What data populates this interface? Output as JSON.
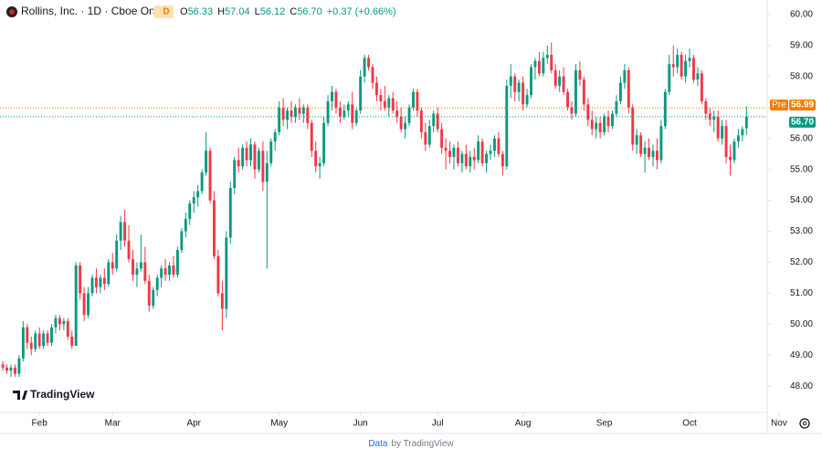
{
  "chart_data": {
    "type": "candlestick",
    "header": {
      "symbol": "Rollins, Inc. · 1D · Cboe One",
      "badge": "D",
      "fields": [
        {
          "key": "O",
          "value": "56.33"
        },
        {
          "key": "H",
          "value": "57.04"
        },
        {
          "key": "L",
          "value": "56.12"
        },
        {
          "key": "C",
          "value": "56.70"
        }
      ],
      "change": "+0.37 (+0.66%)"
    },
    "up_color": "#089981",
    "down_color": "#f23645",
    "candles": [
      [
        48.7,
        48.8,
        48.5,
        48.6
      ],
      [
        48.6,
        48.7,
        48.4,
        48.5
      ],
      [
        48.5,
        48.7,
        48.3,
        48.6
      ],
      [
        48.6,
        48.7,
        48.3,
        48.4
      ],
      [
        48.4,
        49.0,
        48.3,
        48.9
      ],
      [
        48.9,
        50.1,
        48.8,
        49.9
      ],
      [
        49.9,
        50.0,
        49.2,
        49.4
      ],
      [
        49.4,
        49.6,
        49.0,
        49.2
      ],
      [
        49.2,
        49.8,
        49.1,
        49.7
      ],
      [
        49.7,
        49.9,
        49.2,
        49.3
      ],
      [
        49.3,
        49.8,
        49.2,
        49.7
      ],
      [
        49.7,
        49.8,
        49.3,
        49.4
      ],
      [
        49.4,
        50.0,
        49.3,
        49.9
      ],
      [
        49.9,
        50.3,
        49.7,
        50.2
      ],
      [
        50.2,
        50.3,
        49.8,
        50.0
      ],
      [
        50.0,
        50.2,
        49.8,
        50.1
      ],
      [
        50.1,
        50.2,
        49.5,
        49.6
      ],
      [
        49.6,
        49.8,
        49.2,
        49.3
      ],
      [
        49.3,
        52.0,
        49.3,
        51.9
      ],
      [
        51.9,
        52.0,
        50.8,
        51.0
      ],
      [
        51.0,
        51.2,
        50.1,
        50.3
      ],
      [
        50.3,
        51.2,
        50.2,
        51.0
      ],
      [
        51.0,
        51.6,
        50.9,
        51.5
      ],
      [
        51.5,
        51.8,
        51.0,
        51.2
      ],
      [
        51.2,
        51.6,
        51.0,
        51.5
      ],
      [
        51.5,
        51.8,
        51.1,
        51.3
      ],
      [
        51.3,
        52.1,
        51.2,
        52.0
      ],
      [
        52.0,
        52.3,
        51.6,
        51.8
      ],
      [
        51.8,
        52.9,
        51.7,
        52.7
      ],
      [
        52.7,
        53.5,
        52.4,
        53.3
      ],
      [
        53.3,
        53.7,
        52.5,
        52.7
      ],
      [
        52.7,
        53.2,
        52.0,
        52.1
      ],
      [
        52.1,
        52.4,
        51.4,
        51.6
      ],
      [
        51.6,
        52.0,
        51.2,
        51.8
      ],
      [
        51.8,
        52.9,
        51.7,
        52.0
      ],
      [
        52.0,
        52.5,
        51.3,
        51.4
      ],
      [
        51.4,
        51.6,
        50.4,
        50.6
      ],
      [
        50.6,
        51.2,
        50.5,
        51.1
      ],
      [
        51.1,
        51.6,
        50.9,
        51.5
      ],
      [
        51.5,
        51.9,
        51.2,
        51.8
      ],
      [
        51.8,
        52.1,
        51.4,
        51.6
      ],
      [
        51.6,
        52.0,
        51.4,
        51.9
      ],
      [
        51.9,
        52.2,
        51.5,
        51.6
      ],
      [
        51.6,
        52.5,
        51.5,
        52.4
      ],
      [
        52.4,
        53.1,
        52.3,
        53.0
      ],
      [
        53.0,
        53.6,
        52.8,
        53.4
      ],
      [
        53.4,
        54.0,
        53.2,
        53.9
      ],
      [
        53.9,
        54.3,
        53.6,
        54.1
      ],
      [
        54.1,
        54.5,
        53.8,
        54.3
      ],
      [
        54.3,
        55.0,
        54.2,
        54.9
      ],
      [
        54.9,
        56.2,
        54.8,
        55.6
      ],
      [
        55.6,
        55.7,
        53.9,
        54.0
      ],
      [
        54.0,
        54.3,
        52.1,
        52.2
      ],
      [
        52.2,
        52.4,
        50.9,
        51.0
      ],
      [
        51.0,
        51.4,
        49.8,
        50.5
      ],
      [
        50.5,
        53.0,
        50.2,
        52.8
      ],
      [
        52.8,
        54.6,
        52.6,
        54.4
      ],
      [
        54.4,
        55.4,
        54.2,
        55.3
      ],
      [
        55.3,
        55.7,
        54.9,
        55.1
      ],
      [
        55.1,
        55.8,
        55.0,
        55.7
      ],
      [
        55.7,
        55.9,
        55.1,
        55.3
      ],
      [
        55.3,
        56.0,
        55.1,
        55.8
      ],
      [
        55.8,
        55.9,
        54.7,
        55.0
      ],
      [
        55.0,
        55.7,
        54.9,
        55.6
      ],
      [
        55.6,
        55.9,
        54.3,
        54.6
      ],
      [
        54.6,
        55.6,
        51.8,
        55.2
      ],
      [
        55.2,
        56.0,
        55.1,
        55.9
      ],
      [
        55.9,
        56.3,
        55.6,
        56.2
      ],
      [
        56.2,
        57.2,
        56.1,
        57.0
      ],
      [
        57.0,
        57.3,
        56.4,
        56.6
      ],
      [
        56.6,
        57.0,
        56.3,
        56.9
      ],
      [
        56.9,
        57.2,
        56.5,
        56.7
      ],
      [
        56.7,
        57.1,
        56.5,
        57.0
      ],
      [
        57.0,
        57.3,
        56.6,
        56.8
      ],
      [
        56.8,
        57.1,
        56.5,
        57.0
      ],
      [
        57.0,
        57.1,
        56.3,
        56.5
      ],
      [
        56.5,
        56.6,
        55.4,
        55.6
      ],
      [
        55.6,
        55.9,
        54.9,
        55.1
      ],
      [
        55.1,
        55.4,
        54.7,
        55.2
      ],
      [
        55.2,
        56.7,
        55.1,
        56.5
      ],
      [
        56.5,
        57.4,
        56.4,
        57.2
      ],
      [
        57.2,
        57.7,
        56.9,
        57.5
      ],
      [
        57.5,
        57.6,
        56.8,
        57.0
      ],
      [
        57.0,
        57.2,
        56.5,
        56.7
      ],
      [
        56.7,
        57.1,
        56.6,
        56.9
      ],
      [
        56.9,
        57.2,
        56.7,
        57.1
      ],
      [
        57.1,
        57.5,
        56.3,
        56.5
      ],
      [
        56.5,
        57.0,
        56.4,
        56.9
      ],
      [
        56.9,
        58.2,
        56.8,
        58.0
      ],
      [
        58.0,
        58.7,
        57.8,
        58.6
      ],
      [
        58.6,
        58.7,
        58.2,
        58.3
      ],
      [
        58.3,
        58.4,
        57.6,
        57.8
      ],
      [
        57.8,
        58.0,
        57.2,
        57.4
      ],
      [
        57.4,
        57.6,
        56.9,
        57.2
      ],
      [
        57.2,
        57.7,
        56.9,
        57.0
      ],
      [
        57.0,
        57.4,
        56.7,
        57.3
      ],
      [
        57.3,
        57.5,
        56.8,
        56.9
      ],
      [
        56.9,
        57.2,
        56.5,
        56.7
      ],
      [
        56.7,
        57.0,
        56.2,
        56.3
      ],
      [
        56.3,
        56.7,
        56.0,
        56.5
      ],
      [
        56.5,
        57.1,
        56.4,
        57.0
      ],
      [
        57.0,
        57.6,
        56.9,
        57.5
      ],
      [
        57.5,
        57.6,
        56.7,
        56.9
      ],
      [
        56.9,
        57.0,
        56.0,
        56.2
      ],
      [
        56.2,
        56.5,
        55.6,
        55.8
      ],
      [
        55.8,
        56.6,
        55.7,
        56.4
      ],
      [
        56.4,
        56.9,
        56.2,
        56.8
      ],
      [
        56.8,
        57.0,
        56.2,
        56.3
      ],
      [
        56.3,
        56.5,
        55.5,
        55.7
      ],
      [
        55.7,
        56.0,
        55.0,
        55.6
      ],
      [
        55.6,
        55.9,
        55.2,
        55.4
      ],
      [
        55.4,
        55.8,
        55.0,
        55.7
      ],
      [
        55.7,
        55.9,
        55.1,
        55.2
      ],
      [
        55.2,
        55.6,
        54.9,
        55.5
      ],
      [
        55.5,
        55.8,
        55.0,
        55.1
      ],
      [
        55.1,
        55.6,
        54.9,
        55.4
      ],
      [
        55.4,
        55.7,
        55.0,
        55.3
      ],
      [
        55.3,
        56.1,
        55.2,
        55.9
      ],
      [
        55.9,
        56.0,
        55.1,
        55.2
      ],
      [
        55.2,
        55.6,
        54.9,
        55.5
      ],
      [
        55.5,
        55.8,
        55.3,
        55.6
      ],
      [
        55.6,
        56.1,
        55.4,
        56.0
      ],
      [
        56.0,
        56.2,
        55.4,
        55.5
      ],
      [
        55.5,
        55.6,
        54.8,
        55.1
      ],
      [
        55.1,
        57.9,
        55.0,
        57.7
      ],
      [
        57.7,
        58.4,
        57.3,
        58.0
      ],
      [
        58.0,
        58.1,
        57.2,
        57.5
      ],
      [
        57.5,
        57.9,
        57.2,
        57.8
      ],
      [
        57.8,
        58.0,
        56.9,
        57.1
      ],
      [
        57.1,
        57.6,
        57.0,
        57.4
      ],
      [
        57.4,
        58.4,
        57.3,
        58.3
      ],
      [
        58.3,
        58.6,
        57.9,
        58.5
      ],
      [
        58.5,
        58.8,
        58.0,
        58.1
      ],
      [
        58.1,
        58.8,
        58.0,
        58.6
      ],
      [
        58.6,
        59.0,
        58.4,
        58.7
      ],
      [
        58.7,
        59.1,
        58.1,
        58.2
      ],
      [
        58.2,
        58.4,
        57.6,
        57.7
      ],
      [
        57.7,
        58.2,
        57.5,
        58.0
      ],
      [
        58.0,
        58.3,
        57.4,
        57.5
      ],
      [
        57.5,
        57.6,
        56.9,
        57.0
      ],
      [
        57.0,
        57.2,
        56.6,
        56.8
      ],
      [
        56.8,
        58.4,
        56.7,
        58.2
      ],
      [
        58.2,
        58.5,
        57.7,
        57.9
      ],
      [
        57.9,
        58.0,
        56.9,
        57.1
      ],
      [
        57.1,
        57.3,
        56.4,
        56.6
      ],
      [
        56.6,
        56.9,
        56.1,
        56.3
      ],
      [
        56.3,
        56.7,
        56.0,
        56.5
      ],
      [
        56.5,
        56.7,
        56.0,
        56.2
      ],
      [
        56.2,
        56.8,
        56.1,
        56.7
      ],
      [
        56.7,
        56.9,
        56.2,
        56.4
      ],
      [
        56.4,
        56.9,
        56.3,
        56.8
      ],
      [
        56.8,
        57.4,
        56.7,
        57.2
      ],
      [
        57.2,
        58.0,
        57.1,
        57.8
      ],
      [
        57.8,
        58.4,
        57.6,
        58.2
      ],
      [
        58.2,
        58.3,
        56.8,
        57.0
      ],
      [
        57.0,
        57.1,
        55.6,
        55.8
      ],
      [
        55.8,
        56.3,
        55.5,
        56.1
      ],
      [
        56.1,
        56.2,
        55.4,
        55.5
      ],
      [
        55.5,
        55.9,
        54.9,
        55.7
      ],
      [
        55.7,
        56.0,
        55.3,
        55.4
      ],
      [
        55.4,
        55.8,
        55.1,
        55.6
      ],
      [
        55.6,
        56.0,
        55.0,
        55.3
      ],
      [
        55.3,
        56.6,
        55.2,
        56.4
      ],
      [
        56.4,
        57.6,
        56.3,
        57.5
      ],
      [
        57.5,
        58.7,
        57.4,
        58.4
      ],
      [
        58.4,
        59.0,
        58.0,
        58.3
      ],
      [
        58.3,
        58.9,
        58.1,
        58.7
      ],
      [
        58.7,
        58.8,
        57.9,
        58.0
      ],
      [
        58.0,
        58.7,
        57.8,
        58.5
      ],
      [
        58.5,
        58.9,
        58.3,
        58.6
      ],
      [
        58.6,
        58.7,
        57.8,
        57.9
      ],
      [
        57.9,
        58.3,
        57.7,
        58.1
      ],
      [
        58.1,
        58.2,
        57.1,
        57.2
      ],
      [
        57.2,
        57.3,
        56.6,
        56.8
      ],
      [
        56.8,
        57.0,
        56.4,
        56.6
      ],
      [
        56.6,
        56.9,
        56.2,
        56.7
      ],
      [
        56.7,
        56.9,
        55.9,
        56.0
      ],
      [
        56.0,
        56.6,
        55.8,
        56.4
      ],
      [
        56.4,
        56.6,
        55.2,
        55.4
      ],
      [
        55.4,
        55.8,
        54.8,
        55.3
      ],
      [
        55.3,
        56.0,
        55.2,
        55.9
      ],
      [
        55.9,
        56.3,
        55.7,
        56.1
      ],
      [
        56.1,
        56.4,
        55.9,
        56.3
      ],
      [
        56.33,
        57.04,
        56.12,
        56.7
      ]
    ],
    "xlim": [
      -0.7,
      188.1
    ],
    "xticks": [
      {
        "value": 9,
        "label": "Feb"
      },
      {
        "value": 27,
        "label": "Mar"
      },
      {
        "value": 47,
        "label": "Apr"
      },
      {
        "value": 68,
        "label": "May"
      },
      {
        "value": 88,
        "label": "Jun"
      },
      {
        "value": 107,
        "label": "Jul"
      },
      {
        "value": 128,
        "label": "Aug"
      },
      {
        "value": 148,
        "label": "Sep"
      },
      {
        "value": 169,
        "label": "Oct"
      },
      {
        "value": 191,
        "label": "Nov"
      }
    ],
    "ylim": [
      47.15,
      60.47
    ],
    "yticks": [
      {
        "value": 48,
        "label": "48.00"
      },
      {
        "value": 49,
        "label": "49.00"
      },
      {
        "value": 50,
        "label": "50.00"
      },
      {
        "value": 51,
        "label": "51.00"
      },
      {
        "value": 52,
        "label": "52.00"
      },
      {
        "value": 53,
        "label": "53.00"
      },
      {
        "value": 54,
        "label": "54.00"
      },
      {
        "value": 55,
        "label": "55.00"
      },
      {
        "value": 56,
        "label": "56.00"
      },
      {
        "value": 57,
        "label": "57.00"
      },
      {
        "value": 58,
        "label": "58.00"
      },
      {
        "value": 59,
        "label": "59.00"
      },
      {
        "value": 60,
        "label": "60.00"
      }
    ],
    "price_lines": [
      {
        "tag": "Pre",
        "value": 56.99,
        "value_label": "56.99",
        "color": "#f57c00"
      },
      {
        "value": 56.7,
        "value_label": "56.70",
        "color": "#089981"
      }
    ],
    "watermark": "TradingView",
    "footer": {
      "link": "Data",
      "text": "by TradingView"
    }
  }
}
